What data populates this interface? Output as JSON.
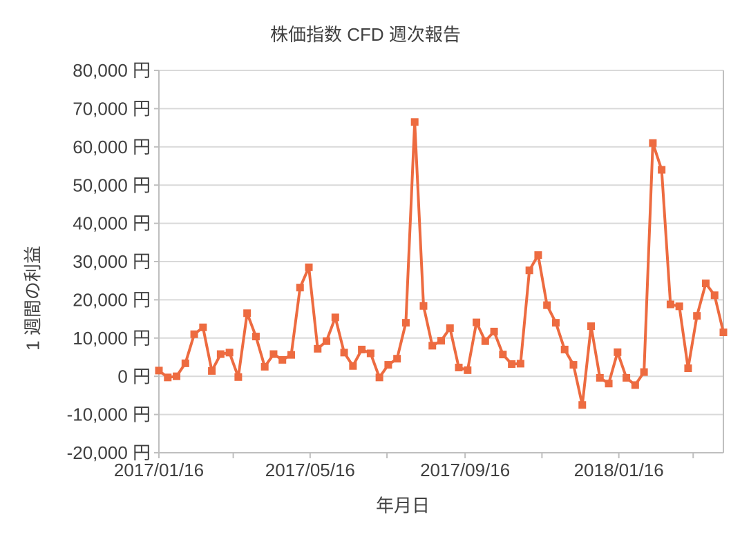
{
  "chart_data": {
    "type": "line",
    "title": "株価指数 CFD 週次報告",
    "xlabel": "年月日",
    "ylabel": "1 週間の利益",
    "ylim": [
      -20000,
      80000
    ],
    "ytick_interval": 10000,
    "yticks": [
      {
        "value": 80000,
        "label": "80,000 円"
      },
      {
        "value": 70000,
        "label": "70,000 円"
      },
      {
        "value": 60000,
        "label": "60,000 円"
      },
      {
        "value": 50000,
        "label": "50,000 円"
      },
      {
        "value": 40000,
        "label": "40,000 円"
      },
      {
        "value": 30000,
        "label": "30,000 円"
      },
      {
        "value": 20000,
        "label": "20,000 円"
      },
      {
        "value": 10000,
        "label": "10,000 円"
      },
      {
        "value": 0,
        "label": "0 円"
      },
      {
        "value": -10000,
        "label": "-10,000 円"
      },
      {
        "value": -20000,
        "label": "-20,000 円"
      }
    ],
    "xticks": [
      {
        "day": 0,
        "label": "2017/01/16"
      },
      {
        "day": 120,
        "label": "2017/05/16"
      },
      {
        "day": 243,
        "label": "2017/09/16"
      },
      {
        "day": 365,
        "label": "2018/01/16"
      }
    ],
    "minor_tick_days": [
      59,
      181,
      304,
      424
    ],
    "span_days": 448,
    "grid": "horizontal",
    "legend": "none",
    "marker": "square",
    "x": [
      "2017/01/16",
      "2017/01/23",
      "2017/01/30",
      "2017/02/06",
      "2017/02/13",
      "2017/02/20",
      "2017/02/27",
      "2017/03/06",
      "2017/03/13",
      "2017/03/20",
      "2017/03/27",
      "2017/04/03",
      "2017/04/10",
      "2017/04/17",
      "2017/04/24",
      "2017/05/01",
      "2017/05/08",
      "2017/05/15",
      "2017/05/22",
      "2017/05/29",
      "2017/06/05",
      "2017/06/12",
      "2017/06/19",
      "2017/06/26",
      "2017/07/03",
      "2017/07/10",
      "2017/07/17",
      "2017/07/24",
      "2017/07/31",
      "2017/08/07",
      "2017/08/14",
      "2017/08/21",
      "2017/08/28",
      "2017/09/04",
      "2017/09/11",
      "2017/09/18",
      "2017/09/25",
      "2017/10/02",
      "2017/10/09",
      "2017/10/16",
      "2017/10/23",
      "2017/10/30",
      "2017/11/06",
      "2017/11/13",
      "2017/11/20",
      "2017/11/27",
      "2017/12/04",
      "2017/12/11",
      "2017/12/18",
      "2017/12/25",
      "2018/01/01",
      "2018/01/08",
      "2018/01/15",
      "2018/01/22",
      "2018/01/29",
      "2018/02/05",
      "2018/02/12",
      "2018/02/19",
      "2018/02/26",
      "2018/03/05",
      "2018/03/12",
      "2018/03/19",
      "2018/03/26",
      "2018/04/02",
      "2018/04/09"
    ],
    "values": [
      1500,
      -300,
      0,
      3400,
      11000,
      12800,
      1400,
      5800,
      6200,
      -200,
      16500,
      10400,
      2500,
      5800,
      4300,
      5600,
      23200,
      28500,
      7200,
      9200,
      15400,
      6200,
      2700,
      7000,
      6000,
      -300,
      3000,
      4600,
      14000,
      66500,
      18400,
      8000,
      9300,
      12600,
      2300,
      1600,
      14100,
      9200,
      11700,
      5700,
      3200,
      3300,
      27700,
      31700,
      18600,
      14000,
      7000,
      3000,
      -7500,
      13100,
      -400,
      -1900,
      6300,
      -400,
      -2300,
      1100,
      61000,
      54000,
      18800,
      18300,
      2100,
      15800,
      24300,
      21200,
      11500
    ],
    "colors": {
      "series": "#ED6B40",
      "gridline": "#D9D9D9",
      "axis_line": "#BFBFBF",
      "text": "#404040",
      "background": "#FFFFFF"
    }
  }
}
